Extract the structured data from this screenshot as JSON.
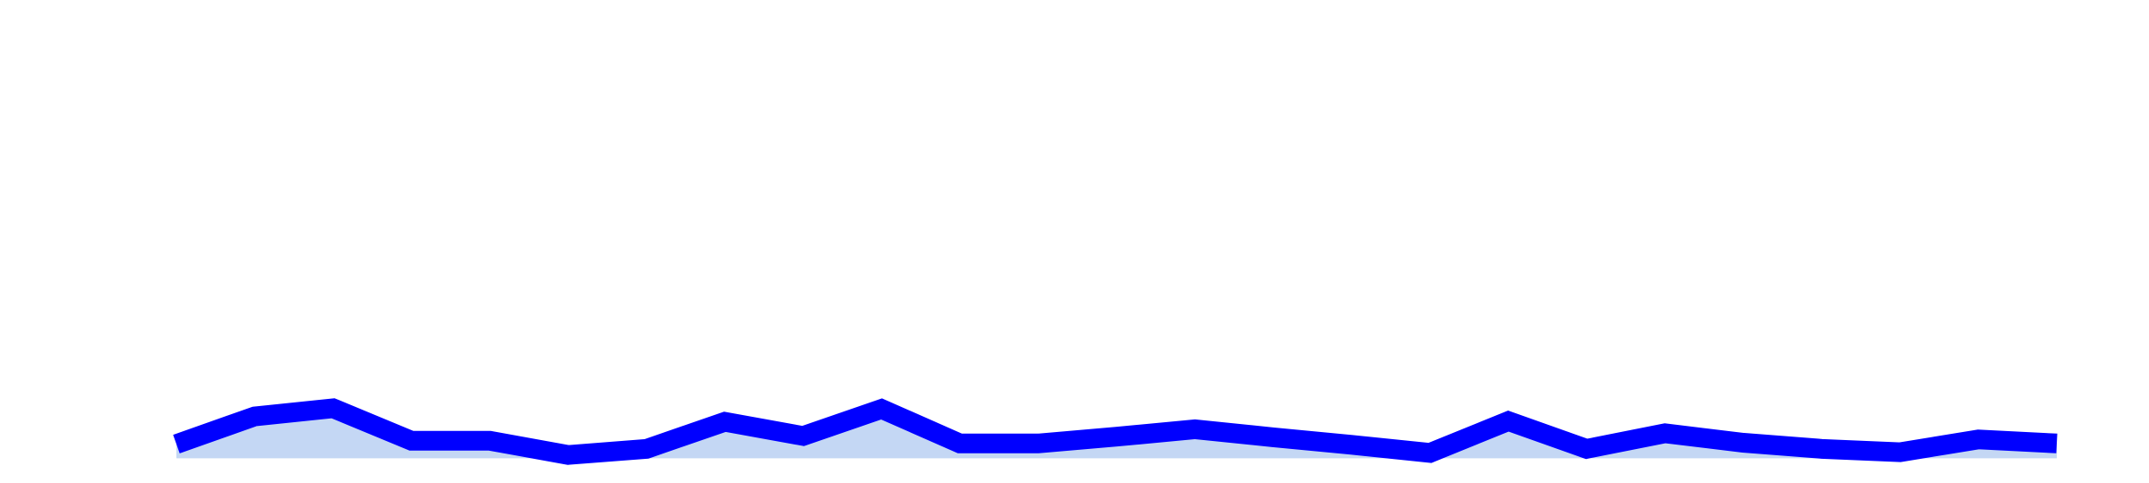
{
  "chart_data": {
    "type": "area",
    "title": "",
    "xlabel": "",
    "ylabel": "",
    "grid": false,
    "legend": "none",
    "x": [
      1,
      2,
      3,
      4,
      5,
      6,
      7,
      8,
      9,
      10,
      11,
      12,
      13,
      14,
      15,
      16,
      17,
      18,
      19,
      20,
      21,
      22,
      23,
      24,
      25
    ],
    "series": [
      {
        "values": [
          21,
          62,
          74,
          26,
          26,
          5,
          14,
          54,
          33,
          73,
          22,
          22,
          32,
          43,
          31,
          20,
          8,
          55,
          14,
          37,
          23,
          14,
          9,
          28,
          22
        ]
      }
    ],
    "ylim": [
      -10,
      640
    ],
    "colors": {
      "line": "#0000ff",
      "fill": "#c4d7f4"
    }
  }
}
